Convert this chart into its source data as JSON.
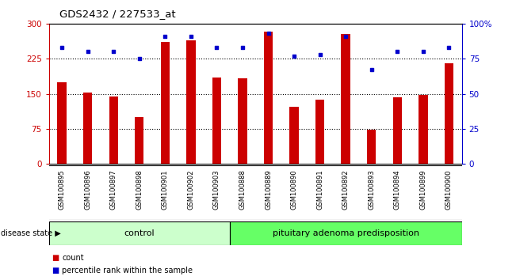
{
  "title": "GDS2432 / 227533_at",
  "samples": [
    "GSM100895",
    "GSM100896",
    "GSM100897",
    "GSM100898",
    "GSM100901",
    "GSM100902",
    "GSM100903",
    "GSM100888",
    "GSM100889",
    "GSM100890",
    "GSM100891",
    "GSM100892",
    "GSM100893",
    "GSM100894",
    "GSM100899",
    "GSM100900"
  ],
  "bar_values": [
    175,
    153,
    145,
    100,
    262,
    265,
    185,
    183,
    284,
    123,
    138,
    278,
    73,
    143,
    148,
    215
  ],
  "dot_values": [
    83,
    80,
    80,
    75,
    91,
    91,
    83,
    83,
    93,
    77,
    78,
    91,
    67,
    80,
    80,
    83
  ],
  "bar_color": "#cc0000",
  "dot_color": "#0000cc",
  "ylim_left": [
    0,
    300
  ],
  "ylim_right": [
    0,
    100
  ],
  "yticks_left": [
    0,
    75,
    150,
    225,
    300
  ],
  "ytick_labels_left": [
    "0",
    "75",
    "150",
    "225",
    "300"
  ],
  "yticks_right": [
    0,
    25,
    50,
    75,
    100
  ],
  "ytick_labels_right": [
    "0",
    "25",
    "50",
    "75",
    "100%"
  ],
  "hlines": [
    75,
    150,
    225
  ],
  "control_count": 7,
  "control_label": "control",
  "disease_label": "pituitary adenoma predisposition",
  "disease_state_label": "disease state",
  "group_bg_control": "#ccffcc",
  "group_bg_disease": "#66ff66",
  "legend_count_label": "count",
  "legend_pct_label": "percentile rank within the sample",
  "bar_width": 0.35,
  "figure_bg": "#ffffff",
  "axis_bg": "#ffffff",
  "tick_label_area_bg": "#c8c8c8"
}
